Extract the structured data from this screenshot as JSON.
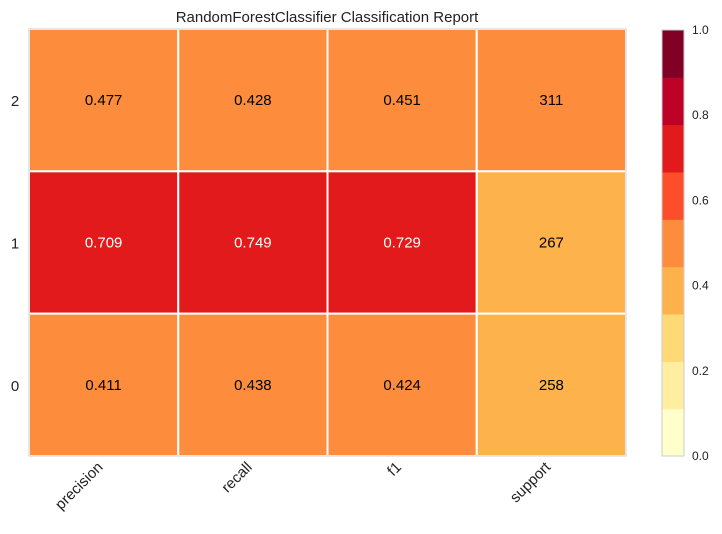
{
  "chart_data": {
    "type": "heatmap",
    "title": "RandomForestClassifier Classification Report",
    "columns": [
      "precision",
      "recall",
      "f1",
      "support"
    ],
    "rows": [
      "2",
      "1",
      "0"
    ],
    "cells": [
      [
        {
          "value": 0.477,
          "label": "0.477",
          "level": 0.55
        },
        {
          "value": 0.428,
          "label": "0.428",
          "level": 0.45
        },
        {
          "value": 0.451,
          "label": "0.451",
          "level": 0.55
        },
        {
          "value": 311,
          "label": "311",
          "level": 0.45
        }
      ],
      [
        {
          "value": 0.709,
          "label": "0.709",
          "level": 0.75
        },
        {
          "value": 0.749,
          "label": "0.749",
          "level": 0.75
        },
        {
          "value": 0.729,
          "label": "0.729",
          "level": 0.75
        },
        {
          "value": 267,
          "label": "267",
          "level": 0.35
        }
      ],
      [
        {
          "value": 0.411,
          "label": "0.411",
          "level": 0.45
        },
        {
          "value": 0.438,
          "label": "0.438",
          "level": 0.45
        },
        {
          "value": 0.424,
          "label": "0.424",
          "level": 0.45
        },
        {
          "value": 258,
          "label": "258",
          "level": 0.35
        }
      ]
    ],
    "colorbar": {
      "range": [
        0.0,
        1.0
      ],
      "ticks": [
        "0.0",
        "0.2",
        "0.4",
        "0.6",
        "0.8",
        "1.0"
      ],
      "colors": [
        "#ffffcc",
        "#ffeda0",
        "#fed976",
        "#feb24c",
        "#fd8d3c",
        "#fc4e2a",
        "#e31a1c",
        "#bd0026",
        "#800026"
      ]
    },
    "grid": false,
    "legend": "colorbar-right"
  }
}
